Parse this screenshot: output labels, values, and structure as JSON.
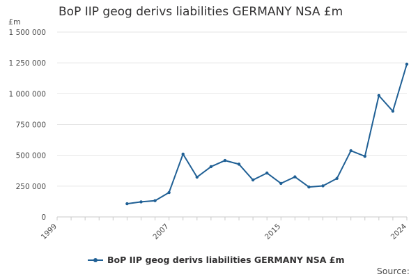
{
  "chart_data": {
    "type": "line",
    "title": "BoP IIP geog derivs liabilities GERMANY NSA £m",
    "unit_label": "£m",
    "xlabel": "",
    "ylabel": "",
    "x_ticks": [
      1999,
      2007,
      2015,
      2024
    ],
    "y_ticks": [
      {
        "value": 0,
        "label": "0"
      },
      {
        "value": 250000,
        "label": "250 000"
      },
      {
        "value": 500000,
        "label": "500 000"
      },
      {
        "value": 750000,
        "label": "750 000"
      },
      {
        "value": 1000000,
        "label": "1 000 000"
      },
      {
        "value": 1250000,
        "label": "1 250 000"
      },
      {
        "value": 1500000,
        "label": "1 500 000"
      }
    ],
    "xlim": [
      1999,
      2024
    ],
    "ylim": [
      0,
      1500000
    ],
    "grid": true,
    "legend_position": "bottom",
    "series": [
      {
        "name": "BoP IIP geog derivs liabilities GERMANY NSA £m",
        "color": "#206095",
        "x": [
          2004,
          2005,
          2006,
          2007,
          2008,
          2009,
          2010,
          2011,
          2012,
          2013,
          2014,
          2015,
          2016,
          2017,
          2018,
          2019,
          2020,
          2021,
          2022,
          2023,
          2024
        ],
        "values": [
          107000,
          122000,
          132000,
          198000,
          510000,
          323000,
          408000,
          458000,
          428000,
          300000,
          356000,
          272000,
          325000,
          243000,
          252000,
          312000,
          537000,
          492000,
          985000,
          858000,
          1240000
        ]
      }
    ]
  },
  "source_label": "Source:"
}
